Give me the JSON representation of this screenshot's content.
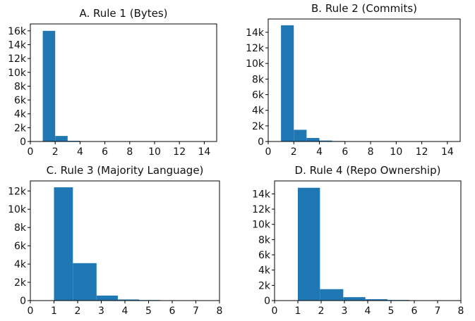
{
  "chart_data": [
    {
      "type": "bar",
      "title": "A. Rule 1 (Bytes)",
      "bin_width": 1,
      "bins": [
        {
          "x0": 1,
          "x1": 2,
          "value": 16000
        },
        {
          "x0": 2,
          "x1": 3,
          "value": 800
        },
        {
          "x0": 3,
          "x1": 4,
          "value": 100
        }
      ],
      "xlim": [
        0,
        15
      ],
      "ylim": [
        0,
        17000
      ],
      "xticks": [
        0,
        2,
        4,
        6,
        8,
        10,
        12,
        14
      ],
      "xtick_labels": [
        "0",
        "2",
        "4",
        "6",
        "8",
        "10",
        "12",
        "14"
      ],
      "yticks": [
        0,
        2000,
        4000,
        6000,
        8000,
        10000,
        12000,
        14000,
        16000
      ],
      "ytick_labels": [
        "0",
        "2k",
        "4k",
        "6k",
        "8k",
        "10k",
        "12k",
        "14k",
        "16k"
      ],
      "grid": false,
      "bar_color": "#1f77b4"
    },
    {
      "type": "bar",
      "title": "B. Rule 2 (Commits)",
      "bins": [
        {
          "x0": 1,
          "x1": 2,
          "value": 14900
        },
        {
          "x0": 2,
          "x1": 3,
          "value": 1500
        },
        {
          "x0": 3,
          "x1": 4,
          "value": 450
        },
        {
          "x0": 4,
          "x1": 5,
          "value": 120
        },
        {
          "x0": 5,
          "x1": 6,
          "value": 60
        }
      ],
      "xlim": [
        0,
        15
      ],
      "ylim": [
        0,
        15700
      ],
      "xticks": [
        0,
        2,
        4,
        6,
        8,
        10,
        12,
        14
      ],
      "xtick_labels": [
        "0",
        "2",
        "4",
        "6",
        "8",
        "10",
        "12",
        "14"
      ],
      "yticks": [
        0,
        2000,
        4000,
        6000,
        8000,
        10000,
        12000,
        14000
      ],
      "ytick_labels": [
        "0",
        "2k",
        "4k",
        "6k",
        "8k",
        "10k",
        "12k",
        "14k"
      ],
      "grid": false,
      "bar_color": "#1f77b4"
    },
    {
      "type": "bar",
      "title": "C. Rule 3 (Majority Language)",
      "bins": [
        {
          "x0": 1,
          "x1": 1.8,
          "value": 12400
        },
        {
          "x0": 1.8,
          "x1": 2.8,
          "value": 4100
        },
        {
          "x0": 2.8,
          "x1": 3.7,
          "value": 550
        },
        {
          "x0": 3.7,
          "x1": 4.6,
          "value": 120
        },
        {
          "x0": 4.6,
          "x1": 5.5,
          "value": 60
        }
      ],
      "xlim": [
        0,
        8
      ],
      "ylim": [
        0,
        13100
      ],
      "xticks": [
        0,
        1,
        2,
        3,
        4,
        5,
        6,
        7,
        8
      ],
      "xtick_labels": [
        "0",
        "1",
        "2",
        "3",
        "4",
        "5",
        "6",
        "7",
        "8"
      ],
      "yticks": [
        0,
        2000,
        4000,
        6000,
        8000,
        10000,
        12000
      ],
      "ytick_labels": [
        "0",
        "2k",
        "4k",
        "6k",
        "8k",
        "10k",
        "12k"
      ],
      "grid": false,
      "bar_color": "#1f77b4"
    },
    {
      "type": "bar",
      "title": "D. Rule 4 (Repo Ownership)",
      "bins": [
        {
          "x0": 1,
          "x1": 1.95,
          "value": 14800
        },
        {
          "x0": 1.95,
          "x1": 2.95,
          "value": 1500
        },
        {
          "x0": 2.95,
          "x1": 3.9,
          "value": 450
        },
        {
          "x0": 3.9,
          "x1": 4.85,
          "value": 180
        },
        {
          "x0": 4.85,
          "x1": 5.8,
          "value": 80
        },
        {
          "x0": 5.8,
          "x1": 6.75,
          "value": 30
        }
      ],
      "xlim": [
        0,
        8
      ],
      "ylim": [
        0,
        15700
      ],
      "xticks": [
        0,
        1,
        2,
        3,
        4,
        5,
        6,
        7,
        8
      ],
      "xtick_labels": [
        "0",
        "1",
        "2",
        "3",
        "4",
        "5",
        "6",
        "7",
        "8"
      ],
      "yticks": [
        0,
        2000,
        4000,
        6000,
        8000,
        10000,
        12000,
        14000
      ],
      "ytick_labels": [
        "0",
        "2k",
        "4k",
        "6k",
        "8k",
        "10k",
        "12k",
        "14k"
      ],
      "grid": false,
      "bar_color": "#1f77b4"
    }
  ]
}
